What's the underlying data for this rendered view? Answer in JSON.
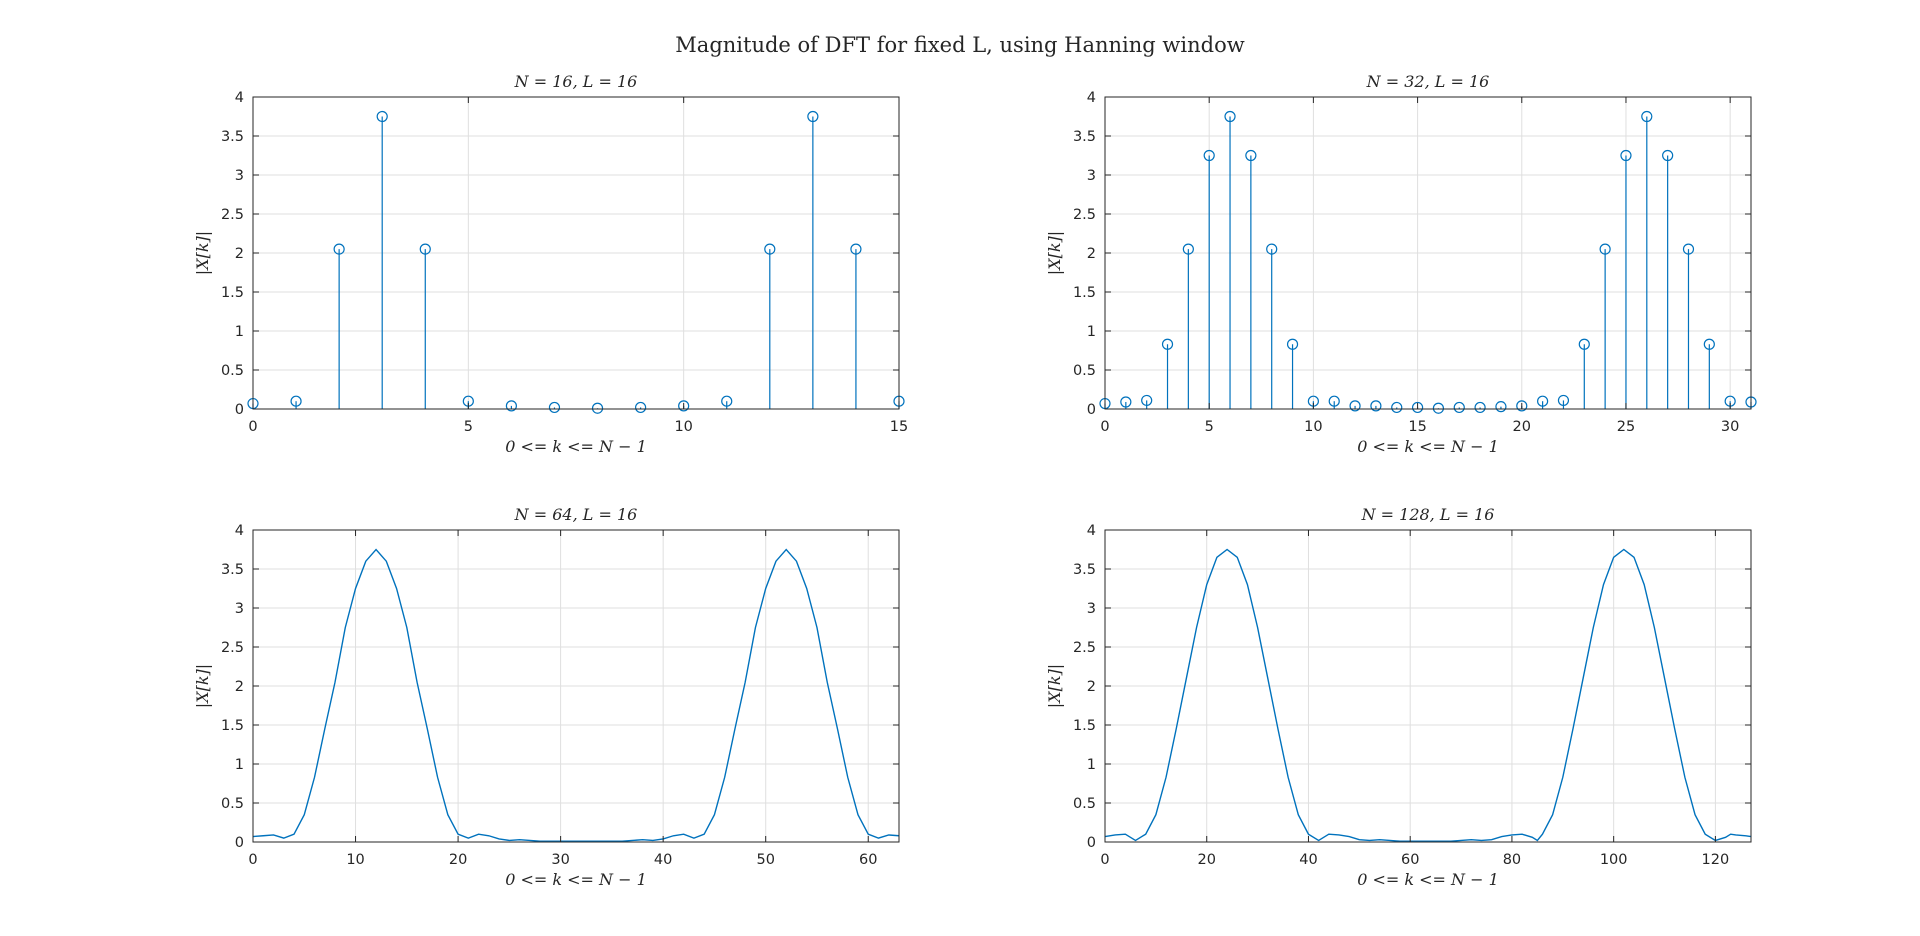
{
  "figure": {
    "suptitle": "Magnitude of DFT for fixed L, using Hanning window",
    "series_color": "#0072bd"
  },
  "chart_data": [
    {
      "type": "stem",
      "title": "N = 16, L = 16",
      "xlabel": "0 <= k <= N − 1",
      "ylabel": "|X[k]|",
      "xlim": [
        0,
        15
      ],
      "ylim": [
        0,
        4
      ],
      "xticks": [
        0,
        5,
        10,
        15
      ],
      "yticks": [
        0,
        0.5,
        1,
        1.5,
        2,
        2.5,
        3,
        3.5,
        4
      ],
      "grid": true,
      "x": [
        0,
        1,
        2,
        3,
        4,
        5,
        6,
        7,
        8,
        9,
        10,
        11,
        12,
        13,
        14,
        15
      ],
      "values": [
        0.07,
        0.1,
        2.05,
        3.75,
        2.05,
        0.1,
        0.04,
        0.02,
        0.01,
        0.02,
        0.04,
        0.1,
        2.05,
        3.75,
        2.05,
        0.1
      ]
    },
    {
      "type": "stem",
      "title": "N = 32, L = 16",
      "xlabel": "0 <= k <= N − 1",
      "ylabel": "|X[k]|",
      "xlim": [
        0,
        31
      ],
      "ylim": [
        0,
        4
      ],
      "xticks": [
        0,
        5,
        10,
        15,
        20,
        25,
        30
      ],
      "yticks": [
        0,
        0.5,
        1,
        1.5,
        2,
        2.5,
        3,
        3.5,
        4
      ],
      "grid": true,
      "x": [
        0,
        1,
        2,
        3,
        4,
        5,
        6,
        7,
        8,
        9,
        10,
        11,
        12,
        13,
        14,
        15,
        16,
        17,
        18,
        19,
        20,
        21,
        22,
        23,
        24,
        25,
        26,
        27,
        28,
        29,
        30,
        31
      ],
      "values": [
        0.07,
        0.09,
        0.11,
        0.83,
        2.05,
        3.25,
        3.75,
        3.25,
        2.05,
        0.83,
        0.1,
        0.1,
        0.04,
        0.04,
        0.02,
        0.02,
        0.01,
        0.02,
        0.02,
        0.03,
        0.04,
        0.1,
        0.11,
        0.83,
        2.05,
        3.25,
        3.75,
        3.25,
        2.05,
        0.83,
        0.1,
        0.09
      ]
    },
    {
      "type": "line",
      "title": "N = 64, L = 16",
      "xlabel": "0 <= k <= N − 1",
      "ylabel": "|X[k]|",
      "xlim": [
        0,
        63
      ],
      "ylim": [
        0,
        4
      ],
      "xticks": [
        0,
        10,
        20,
        30,
        40,
        50,
        60
      ],
      "yticks": [
        0,
        0.5,
        1,
        1.5,
        2,
        2.5,
        3,
        3.5,
        4
      ],
      "grid": true,
      "x": [
        0,
        1,
        2,
        3,
        4,
        5,
        6,
        7,
        8,
        9,
        10,
        11,
        12,
        13,
        14,
        15,
        16,
        17,
        18,
        19,
        20,
        21,
        22,
        23,
        24,
        25,
        26,
        27,
        28,
        29,
        30,
        31,
        32,
        33,
        34,
        35,
        36,
        37,
        38,
        39,
        40,
        41,
        42,
        43,
        44,
        45,
        46,
        47,
        48,
        49,
        50,
        51,
        52,
        53,
        54,
        55,
        56,
        57,
        58,
        59,
        60,
        61,
        62,
        63
      ],
      "values": [
        0.07,
        0.08,
        0.09,
        0.05,
        0.1,
        0.35,
        0.83,
        1.45,
        2.05,
        2.75,
        3.25,
        3.6,
        3.75,
        3.6,
        3.25,
        2.75,
        2.05,
        1.45,
        0.83,
        0.35,
        0.1,
        0.05,
        0.1,
        0.08,
        0.04,
        0.02,
        0.03,
        0.02,
        0.01,
        0.01,
        0.01,
        0.01,
        0.01,
        0.01,
        0.01,
        0.01,
        0.01,
        0.02,
        0.03,
        0.02,
        0.04,
        0.08,
        0.1,
        0.05,
        0.1,
        0.35,
        0.83,
        1.45,
        2.05,
        2.75,
        3.25,
        3.6,
        3.75,
        3.6,
        3.25,
        2.75,
        2.05,
        1.45,
        0.83,
        0.35,
        0.1,
        0.05,
        0.09,
        0.08
      ]
    },
    {
      "type": "line",
      "title": "N = 128, L = 16",
      "xlabel": "0 <= k <= N − 1",
      "ylabel": "|X[k]|",
      "xlim": [
        0,
        127
      ],
      "ylim": [
        0,
        4
      ],
      "xticks": [
        0,
        20,
        40,
        60,
        80,
        100,
        120
      ],
      "yticks": [
        0,
        0.5,
        1,
        1.5,
        2,
        2.5,
        3,
        3.5,
        4
      ],
      "grid": true,
      "x": [
        0,
        2,
        4,
        5,
        6,
        8,
        10,
        12,
        14,
        16,
        18,
        20,
        22,
        24,
        26,
        28,
        30,
        32,
        34,
        36,
        38,
        40,
        42,
        43,
        44,
        46,
        48,
        50,
        52,
        54,
        56,
        58,
        60,
        64,
        68,
        70,
        72,
        74,
        76,
        78,
        80,
        82,
        84,
        85,
        86,
        88,
        90,
        92,
        94,
        96,
        98,
        100,
        102,
        104,
        106,
        108,
        110,
        112,
        114,
        116,
        118,
        120,
        122,
        123,
        124,
        126,
        127
      ],
      "values": [
        0.07,
        0.09,
        0.1,
        0.06,
        0.02,
        0.1,
        0.35,
        0.83,
        1.45,
        2.1,
        2.75,
        3.3,
        3.65,
        3.75,
        3.65,
        3.3,
        2.75,
        2.1,
        1.45,
        0.83,
        0.35,
        0.1,
        0.02,
        0.06,
        0.1,
        0.09,
        0.07,
        0.03,
        0.02,
        0.03,
        0.02,
        0.01,
        0.01,
        0.01,
        0.01,
        0.02,
        0.03,
        0.02,
        0.03,
        0.07,
        0.09,
        0.1,
        0.06,
        0.02,
        0.1,
        0.35,
        0.83,
        1.45,
        2.1,
        2.75,
        3.3,
        3.65,
        3.75,
        3.65,
        3.3,
        2.75,
        2.1,
        1.45,
        0.83,
        0.35,
        0.1,
        0.02,
        0.06,
        0.1,
        0.09,
        0.08,
        0.07
      ]
    }
  ]
}
